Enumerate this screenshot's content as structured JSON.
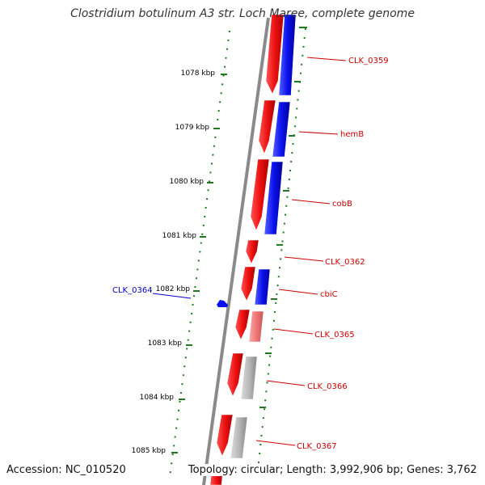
{
  "title": "Clostridium botulinum A3 str. Loch Maree, complete genome",
  "footer": {
    "accession": "Accession: NC_010520",
    "topology": "Topology: circular; Length: 3,992,906 bp; Genes: 3,762"
  },
  "colors": {
    "forward": "#ee1111",
    "reverse": "#0b12ee",
    "reverse_light": "#ee7777",
    "gray": "#b0b0b0",
    "label_red": "#cc0000",
    "label_blue": "#0000cc",
    "tick_green": "#1f7a1f",
    "backbone": "#8a8a8a"
  },
  "ticks": [
    "1078 kbp",
    "1079 kbp",
    "1080 kbp",
    "1081 kbp",
    "1082 kbp",
    "1083 kbp",
    "1084 kbp",
    "1085 kbp"
  ],
  "genes": [
    {
      "name": "CLK_0359",
      "color": "blue"
    },
    {
      "name": "hemB",
      "color": "red"
    },
    {
      "name": "cobB",
      "color": "red"
    },
    {
      "name": "CLK_0362",
      "color": "red"
    },
    {
      "name": "cbiC",
      "color": "red"
    },
    {
      "name": "CLK_0365",
      "color": "red"
    },
    {
      "name": "CLK_0366",
      "color": "red"
    },
    {
      "name": "CLK_0367",
      "color": "red"
    },
    {
      "name": "CLK_0364",
      "color": "blue"
    }
  ]
}
